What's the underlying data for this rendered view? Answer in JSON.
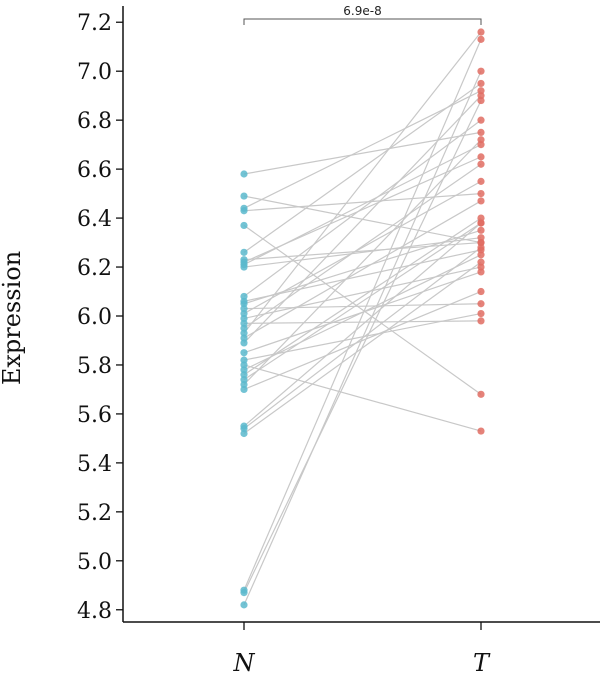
{
  "chart_data": {
    "type": "scatter",
    "subtype": "paired-dot",
    "ylabel": "Expression",
    "categories": [
      "N",
      "T"
    ],
    "ylim": [
      4.75,
      7.25
    ],
    "yticks": [
      4.8,
      5.0,
      5.2,
      5.4,
      5.6,
      5.8,
      6.0,
      6.2,
      6.4,
      6.6,
      6.8,
      7.0,
      7.2
    ],
    "grid": false,
    "annotation": {
      "text": "6.9e-8",
      "between": [
        "N",
        "T"
      ]
    },
    "colors": {
      "N": "#5bb8cc",
      "T": "#e06c62",
      "line": "#c8c8c8",
      "axis": "#111111"
    },
    "series": [
      {
        "name": "N",
        "values": [
          6.58,
          6.49,
          6.44,
          6.43,
          6.37,
          6.26,
          6.23,
          6.22,
          6.21,
          6.2,
          6.08,
          6.06,
          6.05,
          6.03,
          6.01,
          5.99,
          5.97,
          5.95,
          5.93,
          5.91,
          5.89,
          5.85,
          5.82,
          5.8,
          5.78,
          5.76,
          5.74,
          5.72,
          5.7,
          5.55,
          5.54,
          5.52,
          4.88,
          4.87,
          4.82
        ]
      },
      {
        "name": "T",
        "values": [
          6.75,
          6.3,
          6.92,
          6.5,
          5.68,
          6.95,
          6.3,
          6.65,
          6.7,
          6.32,
          6.8,
          6.27,
          6.35,
          6.05,
          6.55,
          6.2,
          5.98,
          6.62,
          7.16,
          6.47,
          6.9,
          6.18,
          6.01,
          5.53,
          6.25,
          6.4,
          6.38,
          6.72,
          6.1,
          6.38,
          6.28,
          6.22,
          7.13,
          6.88,
          7.0
        ]
      }
    ]
  }
}
